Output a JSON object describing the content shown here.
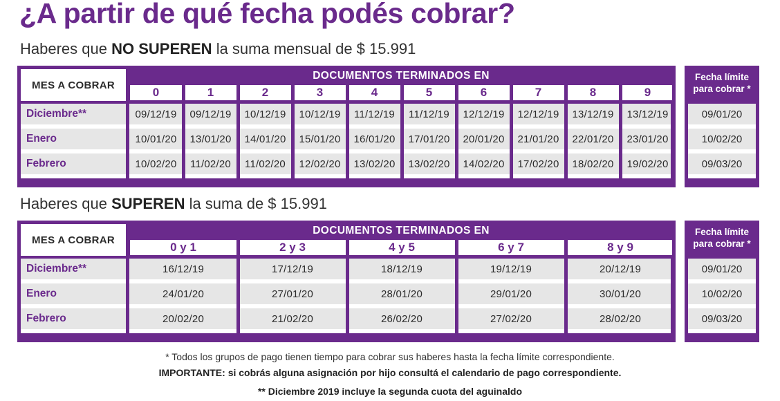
{
  "title": "¿A partir de qué fecha podés cobrar?",
  "section1": {
    "subtitle_pre": "Haberes que ",
    "subtitle_bold": "NO SUPEREN",
    "subtitle_post": " la suma mensual de $ 15.991",
    "mes_header": "MES A COBRAR",
    "doc_header": "DOCUMENTOS TERMINADOS EN",
    "columns": [
      "0",
      "1",
      "2",
      "3",
      "4",
      "5",
      "6",
      "7",
      "8",
      "9"
    ],
    "rows": [
      {
        "month": "Diciembre**",
        "dates": [
          "09/12/19",
          "09/12/19",
          "10/12/19",
          "10/12/19",
          "11/12/19",
          "11/12/19",
          "12/12/19",
          "12/12/19",
          "13/12/19",
          "13/12/19"
        ]
      },
      {
        "month": "Enero",
        "dates": [
          "10/01/20",
          "13/01/20",
          "14/01/20",
          "15/01/20",
          "16/01/20",
          "17/01/20",
          "20/01/20",
          "21/01/20",
          "22/01/20",
          "23/01/20"
        ]
      },
      {
        "month": "Febrero",
        "dates": [
          "10/02/20",
          "11/02/20",
          "11/02/20",
          "12/02/20",
          "13/02/20",
          "13/02/20",
          "14/02/20",
          "17/02/20",
          "18/02/20",
          "19/02/20"
        ]
      }
    ],
    "limit_header": "Fecha límite para cobrar *",
    "limit_dates": [
      "09/01/20",
      "10/02/20",
      "09/03/20"
    ]
  },
  "section2": {
    "subtitle_pre": "Haberes que ",
    "subtitle_bold": "SUPEREN",
    "subtitle_post": " la suma de $ 15.991",
    "mes_header": "MES A COBRAR",
    "doc_header": "DOCUMENTOS TERMINADOS EN",
    "columns": [
      "0 y 1",
      "2 y 3",
      "4 y 5",
      "6 y 7",
      "8 y 9"
    ],
    "rows": [
      {
        "month": "Diciembre**",
        "dates": [
          "16/12/19",
          "17/12/19",
          "18/12/19",
          "19/12/19",
          "20/12/19"
        ]
      },
      {
        "month": "Enero",
        "dates": [
          "24/01/20",
          "27/01/20",
          "28/01/20",
          "29/01/20",
          "30/01/20"
        ]
      },
      {
        "month": "Febrero",
        "dates": [
          "20/02/20",
          "21/02/20",
          "26/02/20",
          "27/02/20",
          "28/02/20"
        ]
      }
    ],
    "limit_header": "Fecha límite para cobrar *",
    "limit_dates": [
      "09/01/20",
      "10/02/20",
      "09/03/20"
    ]
  },
  "footnotes": {
    "note1": "* Todos los grupos de pago tienen tiempo para cobrar sus haberes hasta la fecha límite correspondiente.",
    "note2": "IMPORTANTE: si cobrás alguna asignación por hijo consultá el calendario de pago correspondiente.",
    "note3": "** Diciembre 2019 incluye la segunda cuota del aguinaldo"
  },
  "colors": {
    "brand_purple": "#6a2a8c",
    "band_gray": "#e6e6e6"
  }
}
